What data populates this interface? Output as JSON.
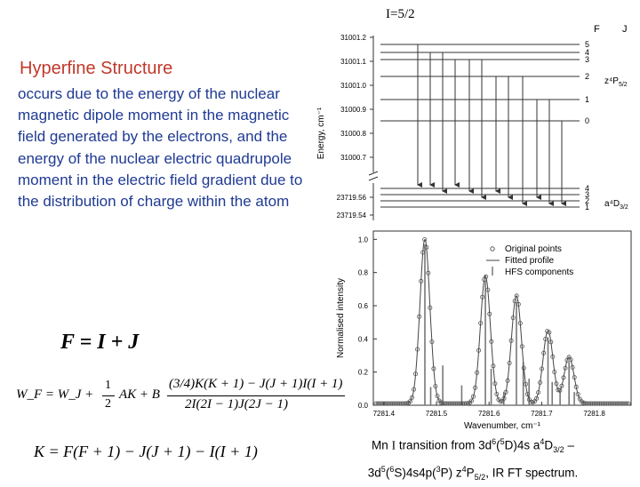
{
  "spin_label": "I=5/2",
  "heading": "Hyperfine Structure",
  "body_text": "occurs due to the energy of the nuclear magnetic dipole moment in the magnetic field generated by the electrons, and the energy of the nuclear electric quadrupole moment in the electric field gradient due to the distribution of charge within the atom",
  "level_diagram": {
    "col_F": "F",
    "col_J": "J",
    "ylabel": "Energy, cm⁻¹",
    "upper_ticks": [
      "31001.2",
      "31001.1",
      "31001.0",
      "31000.9",
      "31000.8",
      "31000.7"
    ],
    "lower_ticks": [
      "23719.56",
      "23719.54"
    ],
    "upper_F": [
      "5",
      "4",
      "3",
      "2",
      "1",
      "0"
    ],
    "lower_F": [
      "4",
      "3",
      "2",
      "1"
    ],
    "upper_term": "z⁴P",
    "upper_term_sub": "5/2",
    "lower_term": "a⁴D",
    "lower_term_sub": "3/2"
  },
  "chart_data": {
    "type": "line",
    "xlabel": "Wavenumber, cm⁻¹",
    "ylabel": "Normalised intensity",
    "xlim": [
      7281.38,
      7281.87
    ],
    "ylim": [
      0.0,
      1.05
    ],
    "xticks": [
      "7281.4",
      "7281.5",
      "7281.6",
      "7281.7",
      "7281.8"
    ],
    "yticks": [
      "0.0",
      "0.2",
      "0.4",
      "0.6",
      "0.8",
      "1.0"
    ],
    "legend": [
      "Original points",
      "Fitted profile",
      "HFS components"
    ],
    "legend_position": "top-right",
    "peaks": [
      {
        "x": 7281.478,
        "y": 0.99
      },
      {
        "x": 7281.593,
        "y": 0.77
      },
      {
        "x": 7281.652,
        "y": 0.65
      },
      {
        "x": 7281.712,
        "y": 0.44
      },
      {
        "x": 7281.752,
        "y": 0.28
      }
    ],
    "components": [
      {
        "x": 7281.478,
        "y": 0.97
      },
      {
        "x": 7281.489,
        "y": 0.11
      },
      {
        "x": 7281.512,
        "y": 0.24
      },
      {
        "x": 7281.548,
        "y": 0.12
      },
      {
        "x": 7281.593,
        "y": 0.75
      },
      {
        "x": 7281.604,
        "y": 0.22
      },
      {
        "x": 7281.628,
        "y": 0.08
      },
      {
        "x": 7281.652,
        "y": 0.62
      },
      {
        "x": 7281.665,
        "y": 0.26
      },
      {
        "x": 7281.676,
        "y": 0.16
      },
      {
        "x": 7281.712,
        "y": 0.41
      },
      {
        "x": 7281.72,
        "y": 0.14
      },
      {
        "x": 7281.735,
        "y": 0.09
      },
      {
        "x": 7281.752,
        "y": 0.26
      },
      {
        "x": 7281.762,
        "y": 0.08
      }
    ]
  },
  "equations": {
    "eq1": "F = I + J",
    "eq2_lhs": "W_F = W_J +",
    "eq2_half": "1",
    "eq2_den": "2",
    "eq2_rest": "AK + B",
    "eq2_num": "(3/4)K(K + 1) − J(J + 1)I(I + 1)",
    "eq2_denom": "2I(2I − 1)J(2J − 1)",
    "eq3": "K = F(F + 1) − J(J + 1) − I(I + 1)"
  },
  "caption": {
    "line1_a": "Mn ",
    "line1_b": "I",
    "line1_c": " transition from 3d",
    "line1_d": "6",
    "line1_e": "(",
    "line1_f": "5",
    "line1_g": "D)4s a",
    "line1_h": "4",
    "line1_i": "D",
    "line1_j": "3/2",
    "line1_k": " –",
    "line2_a": "3d",
    "line2_b": "5",
    "line2_c": "(",
    "line2_d": "6",
    "line2_e": "S)4s4p(",
    "line2_f": "3",
    "line2_g": "P) z",
    "line2_h": "4",
    "line2_i": "P",
    "line2_j": "5/2",
    "line2_k": ", IR FT spectrum."
  }
}
